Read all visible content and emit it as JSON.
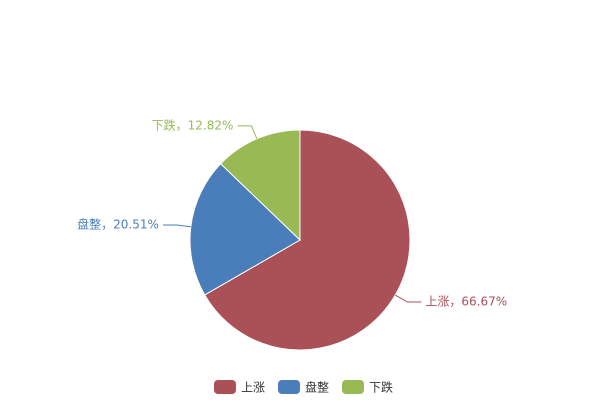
{
  "chart_data": {
    "type": "pie",
    "categories": [
      "上涨",
      "盘整",
      "下跌"
    ],
    "values": [
      66.67,
      20.51,
      12.82
    ],
    "value_labels": [
      "上涨，66.67%",
      "盘整，20.51%",
      "下跌，12.82%"
    ],
    "colors": [
      "#aa5157",
      "#4a7ebb",
      "#98b954"
    ],
    "legend": "bottom"
  }
}
